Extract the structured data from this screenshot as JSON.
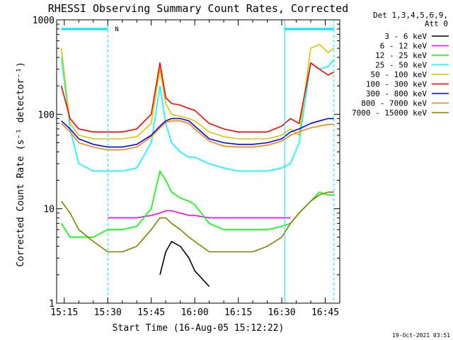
{
  "chart_data": {
    "type": "line",
    "title": "RHESSI Observing Summary Count Rates, Corrected",
    "xlabel": "Start Time (16-Aug-05 15:12:22)",
    "ylabel": "Corrected Count Rate (s⁻¹ detector⁻¹)",
    "yscale": "log",
    "ylim": [
      1,
      1000
    ],
    "xlim": [
      "15:12:22",
      "16:50:00"
    ],
    "x_ticks": [
      "15:15",
      "15:30",
      "15:45",
      "16:00",
      "16:15",
      "16:30",
      "16:45"
    ],
    "y_ticks": [
      "1",
      "10",
      "100",
      "1000"
    ],
    "timestamp": "19-Oct-2021 03:51",
    "legend_header": [
      "Det 1,3,4,5,6,9,",
      "Att 0"
    ],
    "legend_position": "right",
    "flag_marker": "N",
    "x": [
      "15:14",
      "15:17",
      "15:20",
      "15:25",
      "15:30",
      "15:35",
      "15:40",
      "15:45",
      "15:48",
      "15:50",
      "15:52",
      "15:55",
      "15:58",
      "16:00",
      "16:05",
      "16:10",
      "16:15",
      "16:20",
      "16:25",
      "16:30",
      "16:33",
      "16:36",
      "16:40",
      "16:43",
      "16:46",
      "16:48"
    ],
    "series": [
      {
        "name": "3 - 6 keV",
        "color": "#000000",
        "values": [
          null,
          null,
          null,
          null,
          null,
          null,
          null,
          null,
          2.0,
          3.5,
          4.5,
          4.0,
          3.0,
          2.2,
          1.5,
          null,
          null,
          null,
          null,
          null,
          null,
          null,
          null,
          null,
          null,
          null
        ]
      },
      {
        "name": "6 - 12 keV",
        "color": "#ff00ff",
        "values": [
          null,
          null,
          null,
          null,
          8.0,
          8.0,
          8.0,
          8.5,
          9.0,
          9.5,
          9.5,
          9.0,
          8.5,
          8.5,
          8.0,
          8.0,
          8.0,
          8.0,
          8.0,
          8.0,
          8.0,
          null,
          null,
          null,
          null,
          null
        ]
      },
      {
        "name": "12 - 25 keV",
        "color": "#00ff00",
        "values": [
          7.0,
          5.0,
          5.0,
          5.0,
          6.0,
          6.0,
          6.5,
          10.0,
          25.0,
          20.0,
          15.0,
          13.0,
          12.0,
          11.0,
          7.0,
          6.0,
          6.0,
          6.0,
          6.0,
          6.5,
          7.0,
          9.0,
          12.0,
          15.0,
          14.0,
          14.0
        ]
      },
      {
        "name": "25 - 50 keV",
        "color": "#00ffff",
        "values": [
          400,
          70,
          30,
          25,
          25,
          25,
          27,
          50,
          200,
          80,
          50,
          40,
          35,
          35,
          30,
          27,
          25,
          25,
          25,
          27,
          30,
          50,
          350,
          300,
          320,
          380
        ]
      },
      {
        "name": "50 - 100 keV",
        "color": "#d4c800",
        "values": [
          500,
          80,
          60,
          55,
          55,
          55,
          58,
          80,
          300,
          130,
          100,
          95,
          90,
          85,
          65,
          58,
          55,
          55,
          55,
          60,
          70,
          60,
          500,
          550,
          450,
          500
        ]
      },
      {
        "name": "100 - 300 keV",
        "color": "#ff0000",
        "values": [
          200,
          90,
          70,
          65,
          65,
          65,
          70,
          100,
          350,
          150,
          130,
          125,
          115,
          110,
          80,
          70,
          65,
          65,
          65,
          75,
          90,
          80,
          350,
          300,
          260,
          280
        ]
      },
      {
        "name": "300 - 800 keV",
        "color": "#0000ff",
        "values": [
          85,
          70,
          55,
          48,
          45,
          45,
          48,
          60,
          75,
          85,
          90,
          90,
          85,
          75,
          55,
          50,
          48,
          48,
          50,
          55,
          65,
          70,
          80,
          85,
          90,
          90
        ]
      },
      {
        "name": "800 - 7000 keV",
        "color": "#ff8000",
        "values": [
          80,
          65,
          50,
          45,
          42,
          42,
          45,
          58,
          72,
          82,
          85,
          85,
          80,
          70,
          52,
          46,
          45,
          45,
          47,
          52,
          60,
          65,
          72,
          75,
          78,
          78
        ]
      },
      {
        "name": "7000 - 15000 keV",
        "color": "#808000",
        "values": [
          12,
          9,
          6,
          4.5,
          3.5,
          3.5,
          4,
          6,
          8,
          8,
          7,
          6,
          5,
          4.5,
          3.5,
          3.5,
          3.5,
          3.5,
          4,
          5,
          7,
          9,
          12,
          14,
          15,
          15
        ]
      }
    ]
  }
}
